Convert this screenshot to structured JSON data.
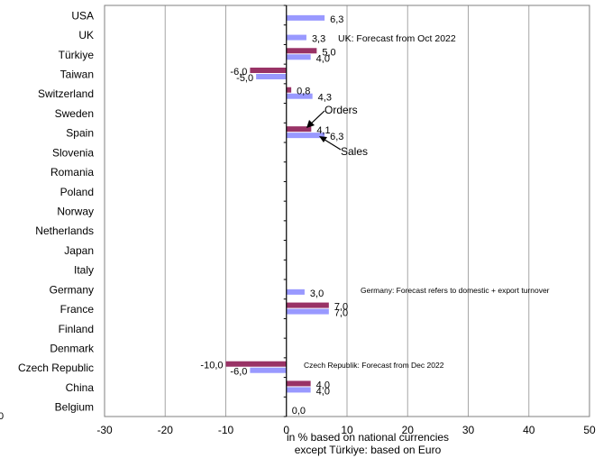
{
  "chart_data": {
    "type": "bar",
    "orientation": "horizontal",
    "categories": [
      "USA",
      "UK",
      "Türkiye",
      "Taiwan",
      "Switzerland",
      "Sweden",
      "Spain",
      "Slovenia",
      "Romania",
      "Poland",
      "Norway",
      "Netherlands",
      "Japan",
      "Italy",
      "Germany",
      "France",
      "Finland",
      "Denmark",
      "Czech Republic",
      "China",
      "Belgium"
    ],
    "series": [
      {
        "name": "Orders",
        "color": "#993366",
        "values": [
          null,
          null,
          5.0,
          -6.0,
          0.8,
          null,
          4.1,
          null,
          null,
          null,
          null,
          null,
          null,
          null,
          null,
          7.0,
          null,
          null,
          -10.0,
          4.0,
          null
        ],
        "labels": [
          null,
          null,
          "5,0",
          "-6,0",
          "0,8",
          null,
          "4,1",
          null,
          null,
          null,
          null,
          null,
          null,
          null,
          null,
          "7,0",
          null,
          null,
          "-10,0",
          "4,0",
          null
        ]
      },
      {
        "name": "Sales",
        "color": "#9999ff",
        "values": [
          6.3,
          3.3,
          4.0,
          -5.0,
          4.3,
          null,
          6.3,
          null,
          null,
          null,
          null,
          null,
          null,
          null,
          3.0,
          7.0,
          null,
          null,
          -6.0,
          4.0,
          0.0
        ],
        "labels": [
          "6,3",
          "3,3",
          "4,0",
          "-5,0",
          "4,3",
          null,
          "6,3",
          null,
          null,
          null,
          null,
          null,
          null,
          null,
          "3,0",
          "7,0",
          null,
          null,
          "-6,0",
          "4,0",
          "0,0"
        ]
      }
    ],
    "xlim": [
      -30,
      50
    ],
    "xticks": [
      "-30",
      "-20",
      "-10",
      "0",
      "10",
      "20",
      "30",
      "40",
      "50"
    ],
    "xtick_values": [
      -30,
      -20,
      -10,
      0,
      10,
      20,
      30,
      40,
      50
    ],
    "xlabel_lines": [
      "in % based on national currencies",
      "except Türkiye: based on Euro"
    ],
    "stray_label": "0",
    "grid": "vertical",
    "notes": {
      "uk": "UK: Forecast from Oct 2022",
      "germany": "Germany: Forecast refers to domestic + export turnover",
      "czech": "Czech Republik: Forecast from Dec 2022"
    },
    "callouts": {
      "orders": "Orders",
      "sales": "Sales"
    }
  }
}
